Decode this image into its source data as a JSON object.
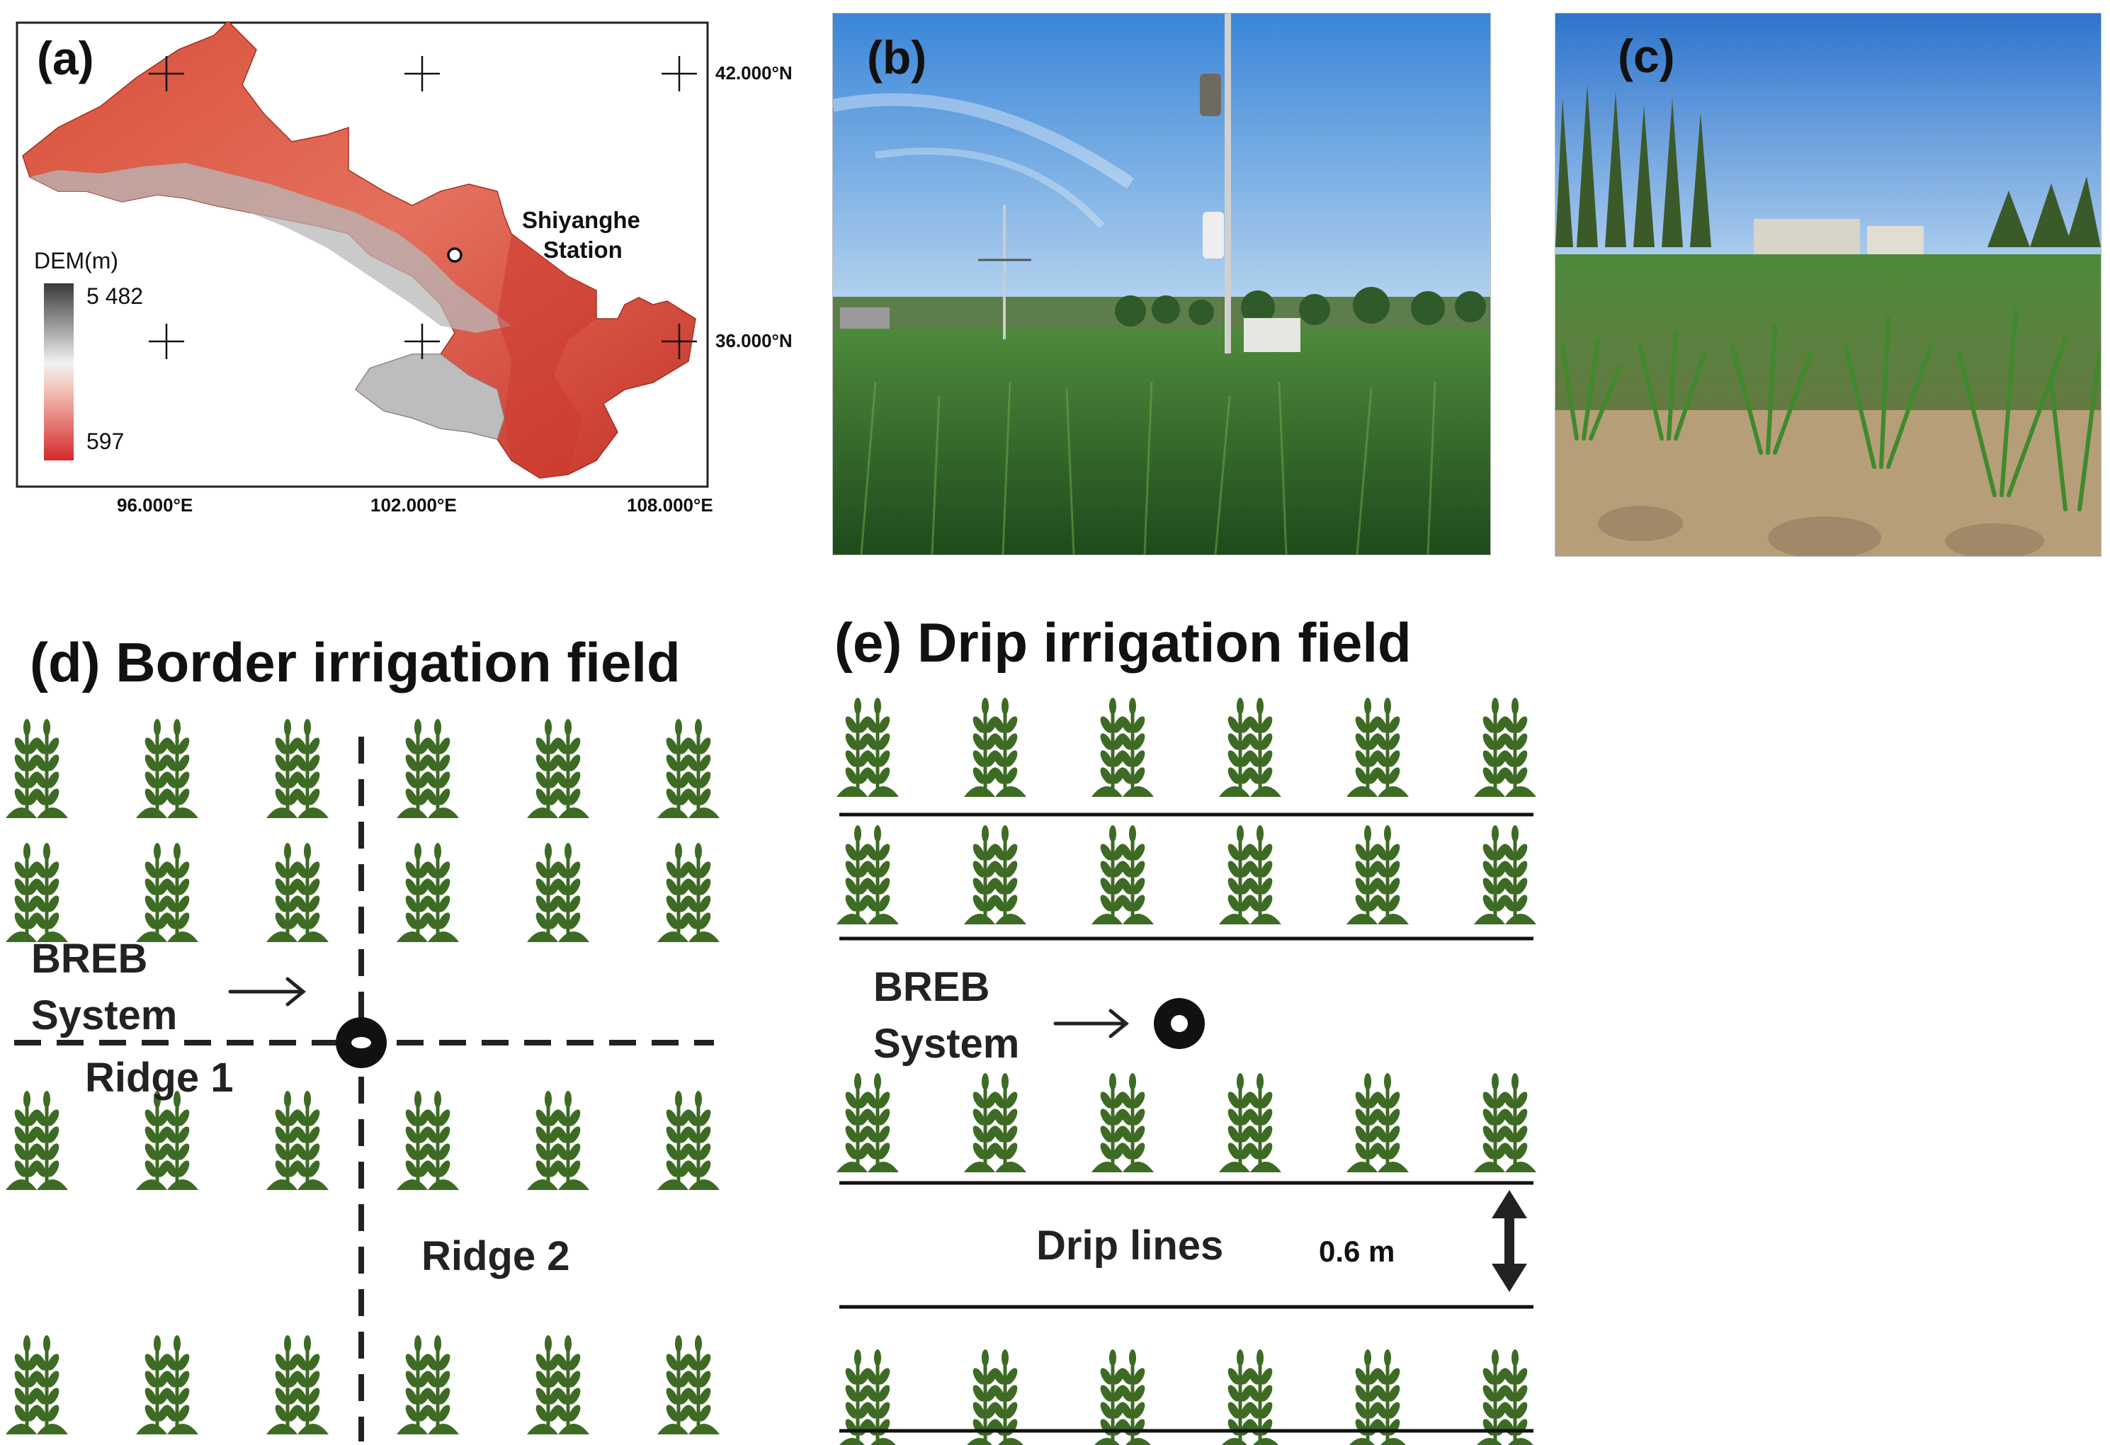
{
  "panels": {
    "a": {
      "letter": "(a)",
      "station": [
        "Shiyanghe",
        "Station"
      ],
      "legend_title": "DEM(m)",
      "legend_max": "5 482",
      "legend_min": "597",
      "lat_labels": [
        "42.000°N",
        "36.000°N"
      ],
      "lon_labels": [
        "96.000°E",
        "102.000°E",
        "108.000°E"
      ]
    },
    "b": {
      "letter": "(b)"
    },
    "c": {
      "letter": "(c)"
    },
    "d": {
      "title": "(d) Border irrigation field",
      "breb_line1": "BREB",
      "breb_line2": "System",
      "ridge1": "Ridge 1",
      "ridge2": "Ridge 2"
    },
    "e": {
      "title": "(e) Drip irrigation field",
      "breb_line1": "BREB",
      "breb_line2": "System",
      "drip_lines": "Drip lines",
      "spacing": "0.6 m"
    }
  },
  "colors": {
    "plant": "#3d6b24",
    "dem_high": "#3a3a3a",
    "dem_low": "#d42a2a",
    "sky": "#4a8ed8",
    "crop": "#3f7a2e"
  }
}
